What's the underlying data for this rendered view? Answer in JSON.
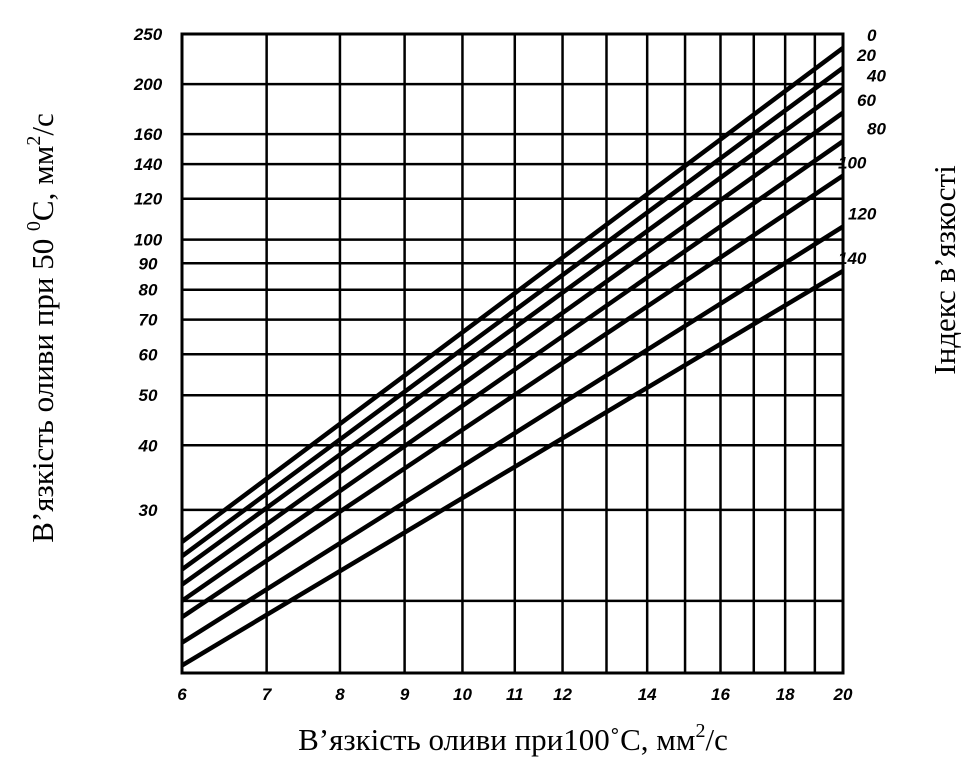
{
  "chart_data": {
    "type": "line",
    "title": "",
    "xlabel": {
      "text": "В’язкість оливи при100˚С, мм",
      "sup": "2",
      "suffix": "/с"
    },
    "ylabel": {
      "text": "В’язкість оливи при 50 ",
      "sup1": "0",
      "mid": "С, мм",
      "sup2": "2",
      "suffix": "/с"
    },
    "right_label": "Індекс в’язкості",
    "x_scale": "log",
    "y_scale": "log",
    "xlim": [
      6,
      20
    ],
    "ylim": [
      14.5,
      250
    ],
    "x_ticks": [
      6,
      7,
      8,
      9,
      10,
      11,
      12,
      14,
      16,
      18,
      20
    ],
    "x_tick_labels": [
      "6",
      "7",
      "8",
      "9",
      "10",
      "11",
      "12",
      "14",
      "16",
      "18",
      "20"
    ],
    "x_grid": [
      6,
      7,
      8,
      9,
      10,
      11,
      12,
      13,
      14,
      15,
      16,
      17,
      18,
      19,
      20
    ],
    "y_ticks": [
      250,
      200,
      160,
      140,
      120,
      100,
      90,
      80,
      70,
      60,
      50,
      40,
      30
    ],
    "y_tick_labels": [
      "250",
      "200",
      "160",
      "140",
      "120",
      "100",
      "90",
      "80",
      "70",
      "60",
      "50",
      "40",
      "30"
    ],
    "y_grid": [
      250,
      200,
      160,
      140,
      120,
      100,
      90,
      80,
      70,
      60,
      50,
      40,
      30,
      20
    ],
    "grid": true,
    "series": [
      {
        "name": "0",
        "points": [
          [
            6,
            26.0
          ],
          [
            20,
            235
          ]
        ]
      },
      {
        "name": "20",
        "points": [
          [
            6,
            24.4
          ],
          [
            20,
            215
          ]
        ]
      },
      {
        "name": "40",
        "points": [
          [
            6,
            23.0
          ],
          [
            20,
            196
          ]
        ]
      },
      {
        "name": "60",
        "points": [
          [
            6,
            21.5
          ],
          [
            20,
            176
          ]
        ]
      },
      {
        "name": "80",
        "points": [
          [
            6,
            20.0
          ],
          [
            20,
            155
          ]
        ]
      },
      {
        "name": "100",
        "points": [
          [
            6,
            18.6
          ],
          [
            20,
            133
          ]
        ]
      },
      {
        "name": "120",
        "points": [
          [
            6,
            16.6
          ],
          [
            20,
            106
          ]
        ]
      },
      {
        "name": "140",
        "points": [
          [
            6,
            15.0
          ],
          [
            20,
            87
          ]
        ]
      }
    ]
  }
}
